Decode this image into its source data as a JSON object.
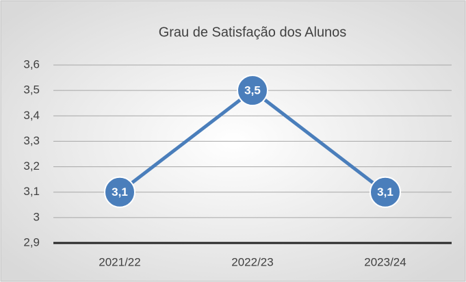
{
  "chart_data": {
    "type": "line",
    "title": "Grau de Satisfação dos Alunos",
    "categories": [
      "2021/22",
      "2022/23",
      "2023/24"
    ],
    "values": [
      3.1,
      3.5,
      3.1
    ],
    "value_labels": [
      "3,1",
      "3,5",
      "3,1"
    ],
    "color": "#4a7ebb",
    "ylim": [
      2.9,
      3.6
    ],
    "yticks": [
      {
        "value": 2.9,
        "label": "2,9"
      },
      3,
      {
        "value": 3.1,
        "label": "3,1"
      },
      {
        "value": 3.2,
        "label": "3,2"
      },
      {
        "value": 3.3,
        "label": "3,3"
      },
      {
        "value": 3.4,
        "label": "3,4"
      },
      {
        "value": 3.5,
        "label": "3,5"
      },
      {
        "value": 3.6,
        "label": "3,6"
      }
    ],
    "grid": true
  }
}
